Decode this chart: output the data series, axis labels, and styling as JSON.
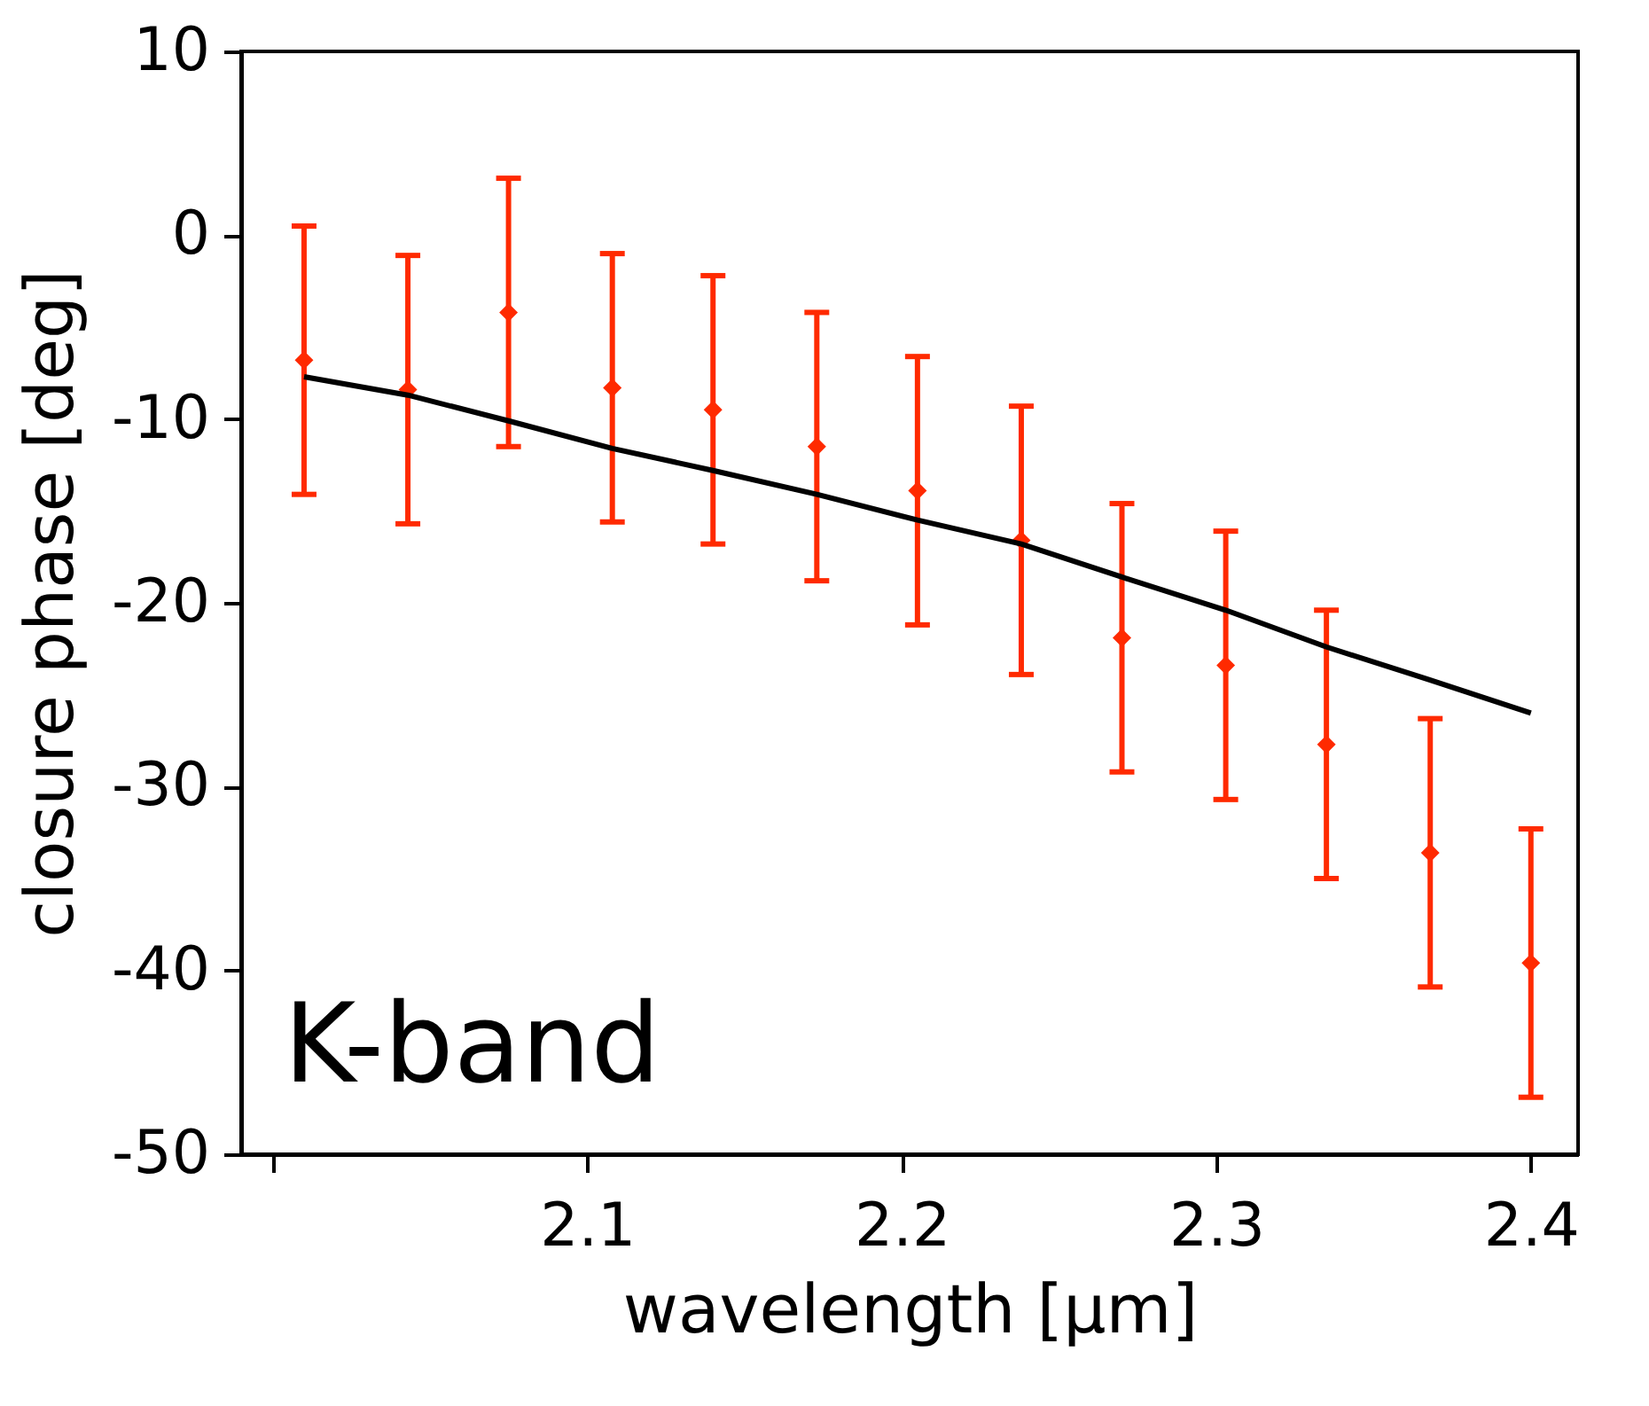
{
  "chart_data": {
    "type": "scatter",
    "xlabel": "wavelength [µm]",
    "ylabel": "closure phase [deg]",
    "annotations": [
      "K-band"
    ],
    "x": [
      2.01,
      2.043,
      2.075,
      2.108,
      2.14,
      2.173,
      2.205,
      2.238,
      2.27,
      2.303,
      2.335,
      2.368,
      2.4
    ],
    "xlim": [
      1.99,
      2.415
    ],
    "xticks": [
      {
        "value": 2.0,
        "label": null
      },
      2.1,
      2.2,
      2.3,
      2.4
    ],
    "ylim": [
      -50,
      10
    ],
    "yticks": [
      -50,
      -40,
      -30,
      -20,
      -10,
      0,
      10
    ],
    "series": [
      {
        "color": "#ff2a00",
        "marker": "diamond",
        "values": [
          -6.8,
          -8.4,
          -4.2,
          -8.3,
          -9.5,
          -11.5,
          -13.9,
          -16.6,
          -21.9,
          -23.4,
          -27.7,
          -33.6,
          -39.6
        ],
        "errors": [
          7.3,
          7.3,
          7.3,
          7.3,
          7.3,
          7.3,
          7.3,
          7.3,
          7.3,
          7.3,
          7.3,
          7.3,
          7.3
        ]
      },
      {
        "type": "line",
        "color": "#000000",
        "marker": "none",
        "line_style": "solid",
        "values": [
          -7.7,
          -8.7,
          -10.1,
          -11.6,
          -12.8,
          -14.1,
          -15.5,
          -16.8,
          -18.6,
          -20.4,
          -22.4,
          -24.2,
          -26.0
        ]
      }
    ]
  }
}
